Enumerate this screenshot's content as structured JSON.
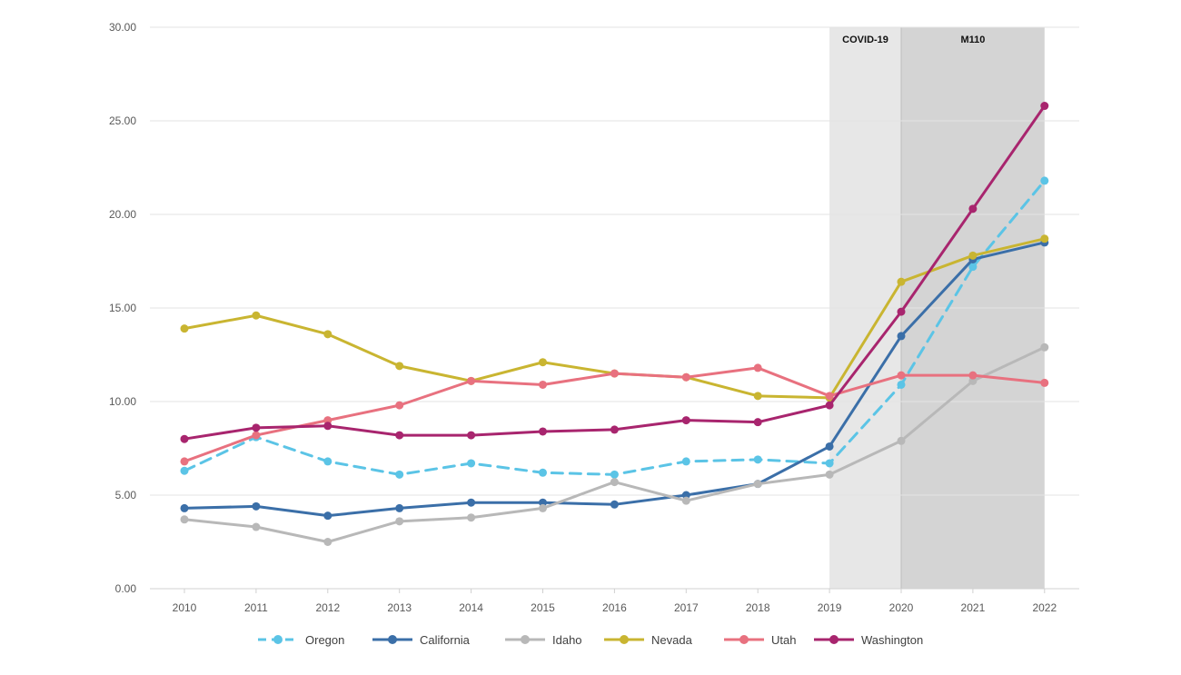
{
  "chart_data": {
    "type": "line",
    "title": "",
    "xlabel": "",
    "ylabel": "",
    "x": [
      "2010",
      "2011",
      "2012",
      "2013",
      "2014",
      "2015",
      "2016",
      "2017",
      "2018",
      "2019",
      "2020",
      "2021",
      "2022"
    ],
    "ylim": [
      0,
      30
    ],
    "yticks": [
      "0.00",
      "5.00",
      "10.00",
      "15.00",
      "20.00",
      "25.00",
      "30.00"
    ],
    "grid": "horizontal",
    "legend": "bottom",
    "bands": [
      {
        "label": "COVID-19",
        "from": "2019",
        "to": "2020",
        "color": "#e7e7e7"
      },
      {
        "label": "M110",
        "from": "2020",
        "to": "2022",
        "color": "#d4d4d4"
      }
    ],
    "series": [
      {
        "name": "Oregon",
        "color": "#5bc4e6",
        "dashed": true,
        "values": [
          6.3,
          8.1,
          6.8,
          6.1,
          6.7,
          6.2,
          6.1,
          6.8,
          6.9,
          6.7,
          10.9,
          17.2,
          21.8
        ]
      },
      {
        "name": "California",
        "color": "#3b6fa8",
        "dashed": false,
        "values": [
          4.3,
          4.4,
          3.9,
          4.3,
          4.6,
          4.6,
          4.5,
          5.0,
          5.6,
          7.6,
          13.5,
          17.6,
          18.5
        ]
      },
      {
        "name": "Idaho",
        "color": "#b8b8b8",
        "dashed": false,
        "values": [
          3.7,
          3.3,
          2.5,
          3.6,
          3.8,
          4.3,
          5.7,
          4.7,
          5.6,
          6.1,
          7.9,
          11.1,
          12.9
        ]
      },
      {
        "name": "Nevada",
        "color": "#c9b531",
        "dashed": false,
        "values": [
          13.9,
          14.6,
          13.6,
          11.9,
          11.1,
          12.1,
          11.5,
          11.3,
          10.3,
          10.2,
          16.4,
          17.8,
          18.7
        ]
      },
      {
        "name": "Utah",
        "color": "#e8717f",
        "dashed": false,
        "values": [
          6.8,
          8.2,
          9.0,
          9.8,
          11.1,
          10.9,
          11.5,
          11.3,
          11.8,
          10.3,
          11.4,
          11.4,
          11.0
        ]
      },
      {
        "name": "Washington",
        "color": "#a8256e",
        "dashed": false,
        "values": [
          8.0,
          8.6,
          8.7,
          8.2,
          8.2,
          8.4,
          8.5,
          9.0,
          8.9,
          9.8,
          14.8,
          20.3,
          25.8
        ]
      }
    ]
  }
}
